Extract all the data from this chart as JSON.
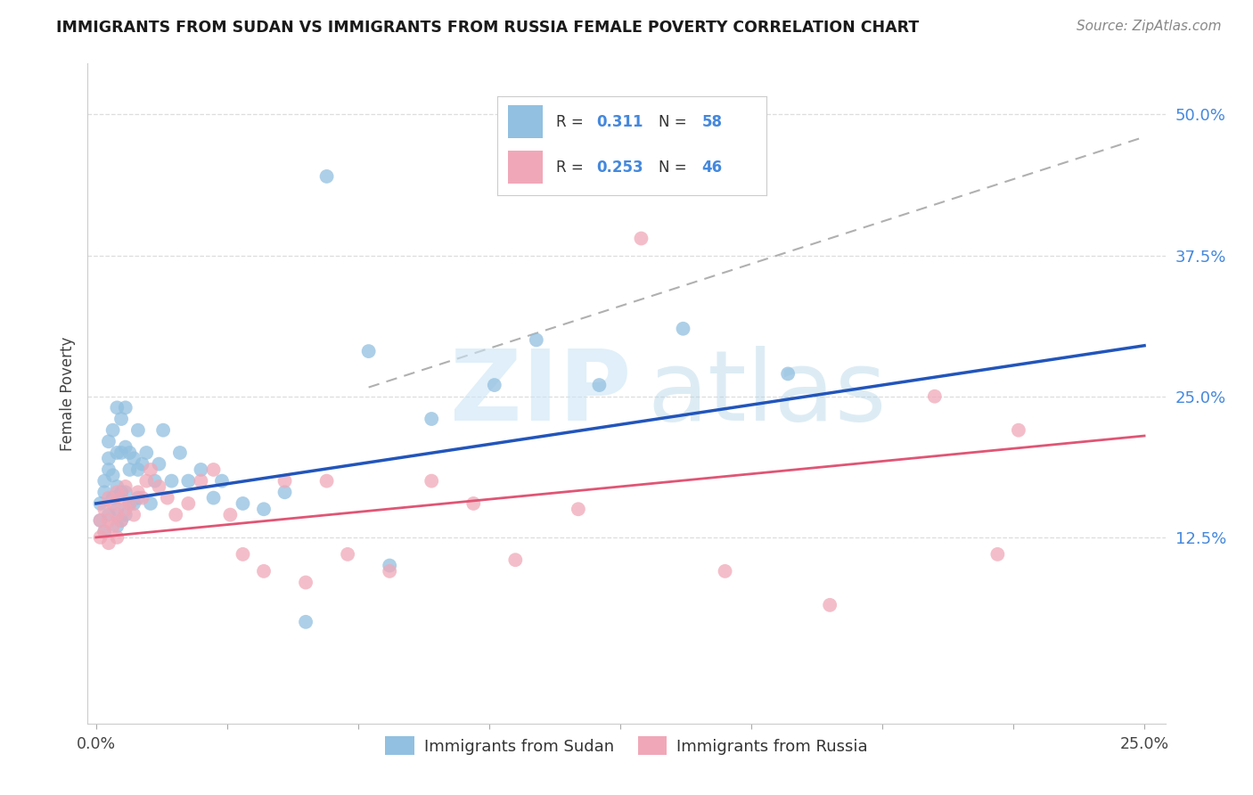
{
  "title": "IMMIGRANTS FROM SUDAN VS IMMIGRANTS FROM RUSSIA FEMALE POVERTY CORRELATION CHART",
  "source": "Source: ZipAtlas.com",
  "ylabel": "Female Poverty",
  "y_tick_vals": [
    0.125,
    0.25,
    0.375,
    0.5
  ],
  "y_tick_labels": [
    "12.5%",
    "25.0%",
    "37.5%",
    "50.0%"
  ],
  "x_tick_vals": [
    0.0,
    0.25
  ],
  "x_tick_labels": [
    "0.0%",
    "25.0%"
  ],
  "xlim": [
    -0.002,
    0.255
  ],
  "ylim": [
    -0.04,
    0.545
  ],
  "color_sudan": "#92c0e0",
  "color_russia": "#f0a8b8",
  "color_line_sudan": "#2255bb",
  "color_line_russia": "#e05575",
  "color_dashed": "#b0b0b0",
  "color_ytick": "#4488dd",
  "color_grid": "#dddddd",
  "sudan_r": 0.311,
  "sudan_n": 58,
  "russia_r": 0.253,
  "russia_n": 46,
  "legend_label_sudan": "Immigrants from Sudan",
  "legend_label_russia": "Immigrants from Russia",
  "sudan_x": [
    0.001,
    0.001,
    0.002,
    0.002,
    0.002,
    0.003,
    0.003,
    0.003,
    0.003,
    0.004,
    0.004,
    0.004,
    0.005,
    0.005,
    0.005,
    0.005,
    0.005,
    0.006,
    0.006,
    0.006,
    0.006,
    0.007,
    0.007,
    0.007,
    0.007,
    0.008,
    0.008,
    0.008,
    0.009,
    0.009,
    0.01,
    0.01,
    0.01,
    0.011,
    0.012,
    0.013,
    0.014,
    0.015,
    0.016,
    0.018,
    0.02,
    0.022,
    0.025,
    0.028,
    0.03,
    0.035,
    0.04,
    0.045,
    0.05,
    0.055,
    0.065,
    0.07,
    0.08,
    0.095,
    0.105,
    0.12,
    0.14,
    0.165
  ],
  "sudan_y": [
    0.14,
    0.155,
    0.13,
    0.165,
    0.175,
    0.145,
    0.185,
    0.195,
    0.21,
    0.16,
    0.18,
    0.22,
    0.135,
    0.15,
    0.17,
    0.2,
    0.24,
    0.14,
    0.165,
    0.2,
    0.23,
    0.145,
    0.165,
    0.205,
    0.24,
    0.155,
    0.185,
    0.2,
    0.155,
    0.195,
    0.16,
    0.185,
    0.22,
    0.19,
    0.2,
    0.155,
    0.175,
    0.19,
    0.22,
    0.175,
    0.2,
    0.175,
    0.185,
    0.16,
    0.175,
    0.155,
    0.15,
    0.165,
    0.05,
    0.445,
    0.29,
    0.1,
    0.23,
    0.26,
    0.3,
    0.26,
    0.31,
    0.27
  ],
  "russia_x": [
    0.001,
    0.001,
    0.002,
    0.002,
    0.003,
    0.003,
    0.003,
    0.004,
    0.004,
    0.005,
    0.005,
    0.005,
    0.006,
    0.006,
    0.007,
    0.007,
    0.008,
    0.009,
    0.01,
    0.011,
    0.012,
    0.013,
    0.015,
    0.017,
    0.019,
    0.022,
    0.025,
    0.028,
    0.032,
    0.035,
    0.04,
    0.045,
    0.05,
    0.055,
    0.06,
    0.07,
    0.08,
    0.09,
    0.1,
    0.115,
    0.13,
    0.15,
    0.175,
    0.2,
    0.215,
    0.22
  ],
  "russia_y": [
    0.125,
    0.14,
    0.13,
    0.15,
    0.12,
    0.14,
    0.16,
    0.135,
    0.155,
    0.125,
    0.145,
    0.165,
    0.14,
    0.16,
    0.15,
    0.17,
    0.155,
    0.145,
    0.165,
    0.16,
    0.175,
    0.185,
    0.17,
    0.16,
    0.145,
    0.155,
    0.175,
    0.185,
    0.145,
    0.11,
    0.095,
    0.175,
    0.085,
    0.175,
    0.11,
    0.095,
    0.175,
    0.155,
    0.105,
    0.15,
    0.39,
    0.095,
    0.065,
    0.25,
    0.11,
    0.22
  ],
  "fig_width": 14.06,
  "fig_height": 8.92,
  "dpi": 100
}
